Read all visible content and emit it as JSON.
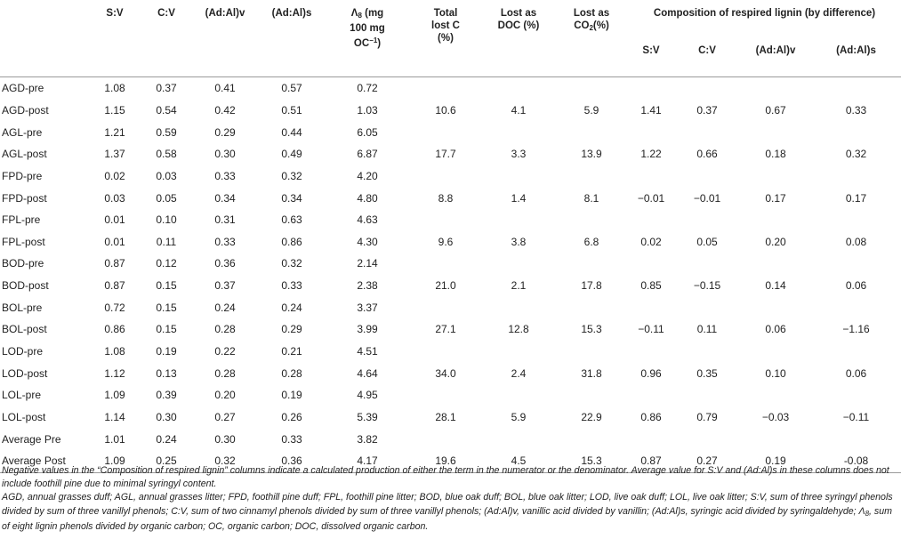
{
  "headers": {
    "sample": "",
    "sv": "S:V",
    "cv": "C:V",
    "adalv": "(Ad:Al)v",
    "adals": "(Ad:Al)s",
    "lambda_line1_sym": "Λ",
    "lambda_line1_sub": "8",
    "lambda_line1_rest": " (mg",
    "lambda_line2": "100 mg",
    "lambda_line3_main": "OC",
    "lambda_line3_sup": "−1",
    "lambda_line3_close": ")",
    "total_lost_c_line1": "Total",
    "total_lost_c_line2": "lost C",
    "total_lost_c_line3": "(%)",
    "lost_doc_line1": "Lost as",
    "lost_doc_line2": "DOC (%)",
    "lost_co2_line1": "Lost as",
    "lost_co2_line2_main": "CO",
    "lost_co2_line2_sub": "2",
    "lost_co2_line2_rest": "(%)",
    "group_title": "Composition of respired lignin (by difference)",
    "sub_sv": "S:V",
    "sub_cv": "C:V",
    "sub_adalv": "(Ad:Al)v",
    "sub_adals": "(Ad:Al)s"
  },
  "rows": [
    {
      "sample": "AGD-pre",
      "sv": "1.08",
      "cv": "0.37",
      "adalv": "0.41",
      "adals": "0.57",
      "lambda": "0.72",
      "total": "",
      "doc": "",
      "co2": "",
      "rsv": "",
      "rcv": "",
      "radalv": "",
      "radals": ""
    },
    {
      "sample": "AGD-post",
      "sv": "1.15",
      "cv": "0.54",
      "adalv": "0.42",
      "adals": "0.51",
      "lambda": "1.03",
      "total": "10.6",
      "doc": "4.1",
      "co2": "5.9",
      "rsv": "1.41",
      "rcv": "0.37",
      "radalv": "0.67",
      "radals": "0.33"
    },
    {
      "sample": "AGL-pre",
      "sv": "1.21",
      "cv": "0.59",
      "adalv": "0.29",
      "adals": "0.44",
      "lambda": "6.05",
      "total": "",
      "doc": "",
      "co2": "",
      "rsv": "",
      "rcv": "",
      "radalv": "",
      "radals": ""
    },
    {
      "sample": "AGL-post",
      "sv": "1.37",
      "cv": "0.58",
      "adalv": "0.30",
      "adals": "0.49",
      "lambda": "6.87",
      "total": "17.7",
      "doc": "3.3",
      "co2": "13.9",
      "rsv": "1.22",
      "rcv": "0.66",
      "radalv": "0.18",
      "radals": "0.32"
    },
    {
      "sample": "FPD-pre",
      "sv": "0.02",
      "cv": "0.03",
      "adalv": "0.33",
      "adals": "0.32",
      "lambda": "4.20",
      "total": "",
      "doc": "",
      "co2": "",
      "rsv": "",
      "rcv": "",
      "radalv": "",
      "radals": ""
    },
    {
      "sample": "FPD-post",
      "sv": "0.03",
      "cv": "0.05",
      "adalv": "0.34",
      "adals": "0.34",
      "lambda": "4.80",
      "total": "8.8",
      "doc": "1.4",
      "co2": "8.1",
      "rsv": "−0.01",
      "rcv": "−0.01",
      "radalv": "0.17",
      "radals": "0.17"
    },
    {
      "sample": "FPL-pre",
      "sv": "0.01",
      "cv": "0.10",
      "adalv": "0.31",
      "adals": "0.63",
      "lambda": "4.63",
      "total": "",
      "doc": "",
      "co2": "",
      "rsv": "",
      "rcv": "",
      "radalv": "",
      "radals": ""
    },
    {
      "sample": "FPL-post",
      "sv": "0.01",
      "cv": "0.11",
      "adalv": "0.33",
      "adals": "0.86",
      "lambda": "4.30",
      "total": "9.6",
      "doc": "3.8",
      "co2": "6.8",
      "rsv": "0.02",
      "rcv": "0.05",
      "radalv": "0.20",
      "radals": "0.08"
    },
    {
      "sample": "BOD-pre",
      "sv": "0.87",
      "cv": "0.12",
      "adalv": "0.36",
      "adals": "0.32",
      "lambda": "2.14",
      "total": "",
      "doc": "",
      "co2": "",
      "rsv": "",
      "rcv": "",
      "radalv": "",
      "radals": ""
    },
    {
      "sample": "BOD-post",
      "sv": "0.87",
      "cv": "0.15",
      "adalv": "0.37",
      "adals": "0.33",
      "lambda": "2.38",
      "total": "21.0",
      "doc": "2.1",
      "co2": "17.8",
      "rsv": "0.85",
      "rcv": "−0.15",
      "radalv": "0.14",
      "radals": "0.06"
    },
    {
      "sample": "BOL-pre",
      "sv": "0.72",
      "cv": "0.15",
      "adalv": "0.24",
      "adals": "0.24",
      "lambda": "3.37",
      "total": "",
      "doc": "",
      "co2": "",
      "rsv": "",
      "rcv": "",
      "radalv": "",
      "radals": ""
    },
    {
      "sample": "BOL-post",
      "sv": "0.86",
      "cv": "0.15",
      "adalv": "0.28",
      "adals": "0.29",
      "lambda": "3.99",
      "total": "27.1",
      "doc": "12.8",
      "co2": "15.3",
      "rsv": "−0.11",
      "rcv": "0.11",
      "radalv": "0.06",
      "radals": "−1.16"
    },
    {
      "sample": "LOD-pre",
      "sv": "1.08",
      "cv": "0.19",
      "adalv": "0.22",
      "adals": "0.21",
      "lambda": "4.51",
      "total": "",
      "doc": "",
      "co2": "",
      "rsv": "",
      "rcv": "",
      "radalv": "",
      "radals": ""
    },
    {
      "sample": "LOD-post",
      "sv": "1.12",
      "cv": "0.13",
      "adalv": "0.28",
      "adals": "0.28",
      "lambda": "4.64",
      "total": "34.0",
      "doc": "2.4",
      "co2": "31.8",
      "rsv": "0.96",
      "rcv": "0.35",
      "radalv": "0.10",
      "radals": "0.06"
    },
    {
      "sample": "LOL-pre",
      "sv": "1.09",
      "cv": "0.39",
      "adalv": "0.20",
      "adals": "0.19",
      "lambda": "4.95",
      "total": "",
      "doc": "",
      "co2": "",
      "rsv": "",
      "rcv": "",
      "radalv": "",
      "radals": ""
    },
    {
      "sample": "LOL-post",
      "sv": "1.14",
      "cv": "0.30",
      "adalv": "0.27",
      "adals": "0.26",
      "lambda": "5.39",
      "total": "28.1",
      "doc": "5.9",
      "co2": "22.9",
      "rsv": "0.86",
      "rcv": "0.79",
      "radalv": "−0.03",
      "radals": "−0.11"
    },
    {
      "sample": "Average Pre",
      "sv": "1.01",
      "cv": "0.24",
      "adalv": "0.30",
      "adals": "0.33",
      "lambda": "3.82",
      "total": "",
      "doc": "",
      "co2": "",
      "rsv": "",
      "rcv": "",
      "radalv": "",
      "radals": ""
    },
    {
      "sample": "Average Post",
      "sv": "1.09",
      "cv": "0.25",
      "adalv": "0.32",
      "adals": "0.36",
      "lambda": "4.17",
      "total": "19.6",
      "doc": "4.5",
      "co2": "15.3",
      "rsv": "0.87",
      "rcv": "0.27",
      "radalv": "0.19",
      "radals": "-0.08"
    }
  ],
  "notes": {
    "note1": "Negative values in the “Composition of respired lignin” columns indicate a calculated production of either the term in the numerator or the denominator. Average value for S:V and (Ad:Al)s in these columns does not include foothill pine due to minimal syringyl content.",
    "note2_pre": "AGD, annual grasses duff; AGL, annual grasses litter; FPD, foothill pine duff; FPL, foothill pine litter; BOD, blue oak duff; BOL, blue oak litter; LOD, live oak duff; LOL, live oak litter; S:V, sum of three syringyl phenols divided by sum of three vanillyl phenols; C:V, sum of two cinnamyl phenols divided by sum of three vanillyl phenols; (Ad:Al)v, vanillic acid divided by vanillin; (Ad:Al)s, syringic acid divided by syringaldehyde; ",
    "note2_sym": "Λ",
    "note2_sub": "8",
    "note2_post": ", sum of eight lignin phenols divided by organic carbon; OC, organic carbon; DOC, dissolved organic carbon."
  }
}
